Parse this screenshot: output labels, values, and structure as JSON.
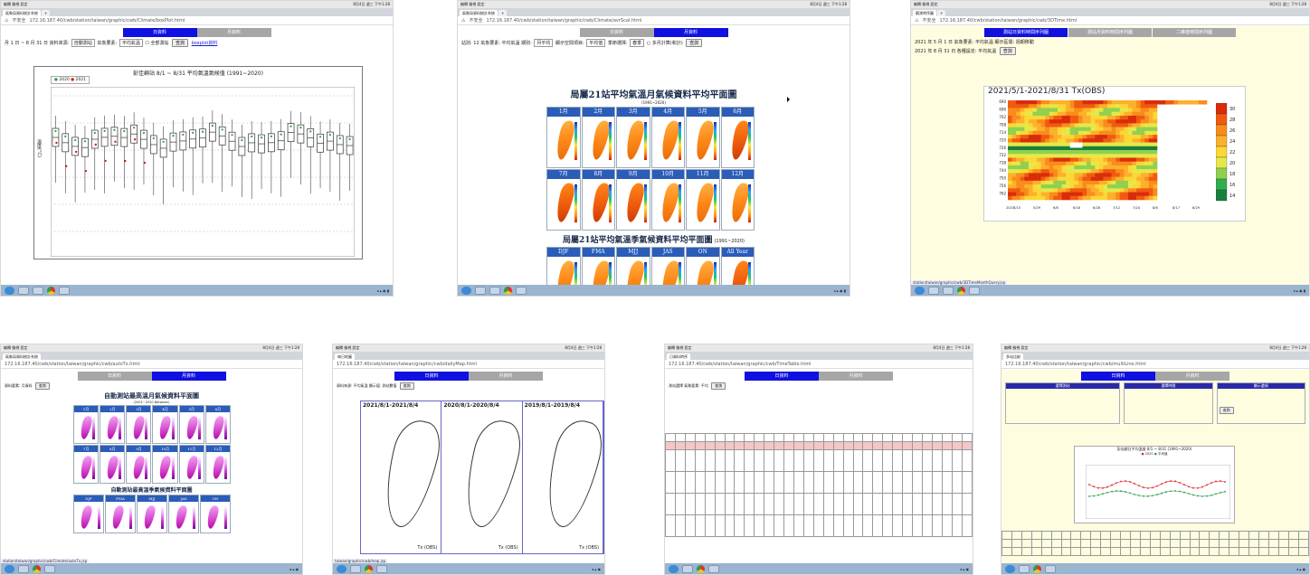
{
  "common": {
    "menu_left": "編輯  檢視  設定",
    "address": "172.16.187.40",
    "secure_label": "不安全",
    "tray_time": "8月4日 週三 下午1:28",
    "tab_new": "+",
    "toggle_daily": "日資料",
    "toggle_monthly": "月資料"
  },
  "p1": {
    "url_path": "172.16.187.40/cwb/station/taiwan/graphic/cwb/Climate/boxPlot.html",
    "tab_title": "氣象局資料統計系統",
    "ctrl_text": "月 1 日 ~ 8 月 31 日 資料來源:",
    "src_value": "自動測站",
    "elem_label": "氣象要素:",
    "elem_value": "平均氣溫",
    "all_label": "全部測站",
    "query_btn": "查詢",
    "download_link": "boxplot資料",
    "chart_title": "彭佳嶼站 8/1 ~ 8/31 平均氣溫氣候值 (1991~2020)",
    "legend_a": "2020",
    "legend_b": "2021",
    "ylabel": "溫度(°C)"
  },
  "p2": {
    "url_path": "172.16.187.40/cwb/station/taiwan/graphic/cwb/Climate/avrScal.html",
    "tab_title": "氣象局資料統計系統",
    "ctrl_text": "站別: 12 氣象要素: 平均氣溫",
    "period_label": "期別:",
    "period_value": "月平均",
    "display_label": "顯示空間項目:",
    "display_value": "平均值",
    "season_label": "季節選擇:",
    "season_value": "春季",
    "multi_label": "多月計算(和計)",
    "query_btn": "查詢",
    "title_month": "局屬21站平均氣溫月氣候資料平均平面圖",
    "subtitle_month": "(1991~2020)",
    "months": [
      "1月",
      "2月",
      "3月",
      "4月",
      "5月",
      "6月",
      "7月",
      "8月",
      "9月",
      "10月",
      "11月",
      "12月"
    ],
    "title_season": "局屬21站平均氣溫季氣候資料平均平面圖",
    "season_tail": "(1991~2020)",
    "seasons": [
      "DJF",
      "FMA",
      "MJJ",
      "JAS",
      "ON",
      "All Year"
    ]
  },
  "p3": {
    "url_path": "172.16.187.40/cwb/station/taiwan/graphic/cwb/3DTime.html",
    "tab_title": "觀測時序圖",
    "tabs": [
      "測站日資料時間序列圖",
      "測站月資料時間序列圖",
      "二維度時間序列圖"
    ],
    "row1": "2021 年 5 月 1 日 氣象要素: 平均氣溫 顯示區間: 週期移動",
    "row2": "2021 年 8 月 31 日 各種設定: 平均氣溫",
    "query_btn": "查詢",
    "chart_title": "2021/5/1-2021/8/31 Tx(OBS)",
    "colorbar": [
      "30",
      "28",
      "26",
      "24",
      "22",
      "20",
      "18",
      "16",
      "14"
    ],
    "xticks": [
      "5/15",
      "5/29",
      "6/8",
      "6/18",
      "6/28",
      "7/12",
      "7/24",
      "8/6",
      "8/17",
      "8/29"
    ],
    "x_start": "2021",
    "status_url": "station/taiwan/graphic/cwb/3DTimeMonthQuery.jsp"
  },
  "p4": {
    "url_path": "172.16.187.40/cwb/station/taiwan/graphic/cwb/autoTx.html",
    "tab_title": "氣象局資料統計系統",
    "ctrl_text": "資料要素: 月資料",
    "query_btn": "查詢",
    "title_month": "自動測站最高溫月氣候資料平面圖",
    "subtitle": "(2001~2020 Between)",
    "months": [
      "1月",
      "2月",
      "3月",
      "4月",
      "5月",
      "6月",
      "7月",
      "8月",
      "9月",
      "10月",
      "11月",
      "12月"
    ],
    "title_season": "自動測站最高溫季氣候資料平面圖",
    "seasons": [
      "DJF",
      "FMA",
      "MJJ",
      "JAS",
      "ON"
    ],
    "status_url": "station/taiwan/graphic/cwb/Climate/autoTx.jsp"
  },
  "p5": {
    "url_path": "172.16.187.40/cwb/station/taiwan/graphic/cwb/dailyMap.html",
    "tab_title": "每日地圖",
    "ctrl_text": "資料來源: 平均氣溫 顯示值: 測站數值",
    "query_btn": "查詢",
    "maps": [
      {
        "title": "2021/8/1-2021/8/4",
        "label": "Tx (OBS)"
      },
      {
        "title": "2020/8/1-2020/8/4",
        "label": "Tx (OBS)"
      },
      {
        "title": "2019/8/1-2019/8/4",
        "label": "Tx (OBS)"
      }
    ],
    "status_url": "taiwan/graphic/cwb/map.jsp"
  },
  "p6": {
    "url_path": "172.16.187.40/cwb/station/taiwan/graphic/cwb/TimeTable.html",
    "tab_title": "日資料時序",
    "ctrl_text": "測站選擇  氣象要素: 平均",
    "query_btn": "查詢"
  },
  "p7": {
    "url_path": "172.16.187.40/cwb/station/taiwan/graphic/cwb/multiLine.html",
    "tab_title": "多站比較",
    "sec_a": "選擇測站",
    "sec_b": "選擇時間",
    "sec_c": "顯示選項",
    "query_btn": "查詢",
    "chart_title": "彭佳嶼日平均溫度 8/1 ~ 8/31 (1991~2020)",
    "legend_a": "2020",
    "legend_b": "平均值"
  }
}
